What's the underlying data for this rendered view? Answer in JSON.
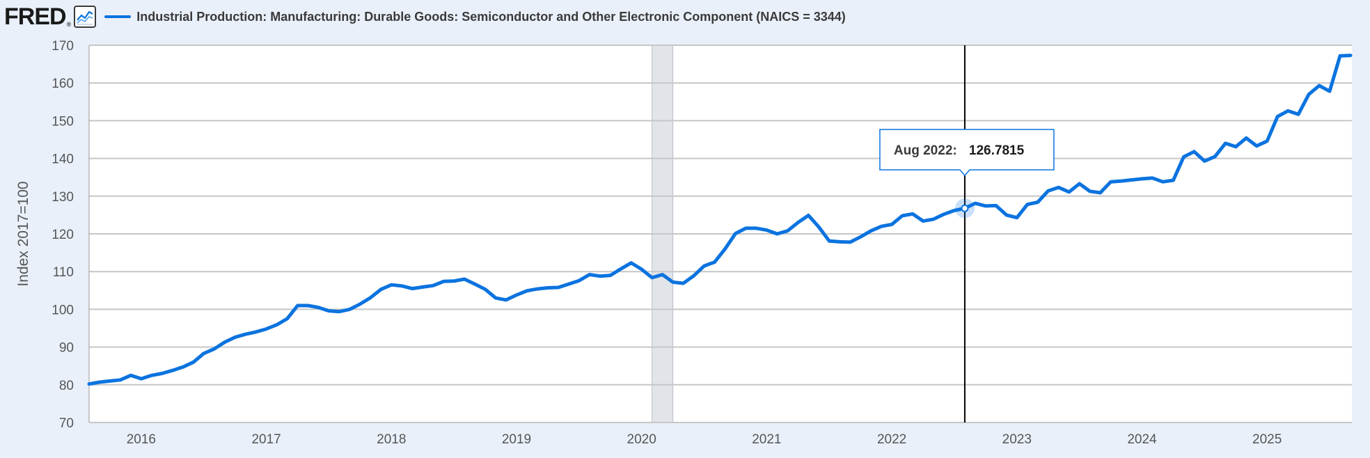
{
  "header": {
    "logo_text": "FRED",
    "logo_mark": "®",
    "graph_icon": "line-graph-icon"
  },
  "colors": {
    "series": "#0b73df",
    "background": "#e9f0f9",
    "plot": "#ffffff",
    "grid": "#c6c6c6",
    "recession": "#e1e5ea",
    "crosshair": "#000000"
  },
  "chart_data": {
    "type": "line",
    "title": "Industrial Production: Manufacturing: Durable Goods: Semiconductor and Other Electronic Component (NAICS = 3344)",
    "ylabel": "Index 2017=100",
    "xlabel": "",
    "ylim": [
      70,
      170
    ],
    "y_ticks": [
      70,
      80,
      90,
      100,
      110,
      120,
      130,
      140,
      150,
      160,
      170
    ],
    "x_tick_labels": [
      "2016",
      "2017",
      "2018",
      "2019",
      "2020",
      "2021",
      "2022",
      "2023",
      "2024",
      "2025"
    ],
    "grid": true,
    "recession": {
      "start": "Feb 2020",
      "end": "Apr 2020"
    },
    "start": "Aug 2015",
    "series": [
      {
        "name": "Industrial Production: Manufacturing: Durable Goods: Semiconductor and Other Electronic Component (NAICS = 3344)",
        "values": [
          80.2,
          80.7,
          81.0,
          81.3,
          82.5,
          81.6,
          82.5,
          83.0,
          83.8,
          84.7,
          86.0,
          88.3,
          89.5,
          91.3,
          92.6,
          93.4,
          94.0,
          94.8,
          95.9,
          97.5,
          101.0,
          101.0,
          100.5,
          99.6,
          99.4,
          100.0,
          101.4,
          103.1,
          105.3,
          106.5,
          106.2,
          105.5,
          105.9,
          106.3,
          107.4,
          107.5,
          108.0,
          106.7,
          105.3,
          103.0,
          102.5,
          103.8,
          104.9,
          105.4,
          105.7,
          105.8,
          106.7,
          107.6,
          109.2,
          108.8,
          109.0,
          110.7,
          112.3,
          110.6,
          108.4,
          109.2,
          107.2,
          106.9,
          108.9,
          111.5,
          112.5,
          116.0,
          120.1,
          121.5,
          121.5,
          121.0,
          120.0,
          120.8,
          123.0,
          124.9,
          121.8,
          118.1,
          117.9,
          117.8,
          119.2,
          120.8,
          122.0,
          122.5,
          124.8,
          125.3,
          123.4,
          123.9,
          125.2,
          126.2,
          126.7815,
          128.1,
          127.4,
          127.5,
          125.0,
          124.3,
          127.8,
          128.4,
          131.4,
          132.3,
          131.1,
          133.3,
          131.3,
          130.9,
          133.8,
          134.0,
          134.3,
          134.6,
          134.8,
          133.8,
          134.2,
          140.4,
          141.8,
          139.3,
          140.5,
          144.0,
          143.1,
          145.4,
          143.3,
          144.6,
          151.1,
          152.6,
          151.7,
          157.0,
          159.3,
          157.8,
          167.2,
          167.3
        ]
      }
    ],
    "tooltip": {
      "label": "Aug 2022:",
      "value": "126.7815",
      "index": 84
    }
  }
}
